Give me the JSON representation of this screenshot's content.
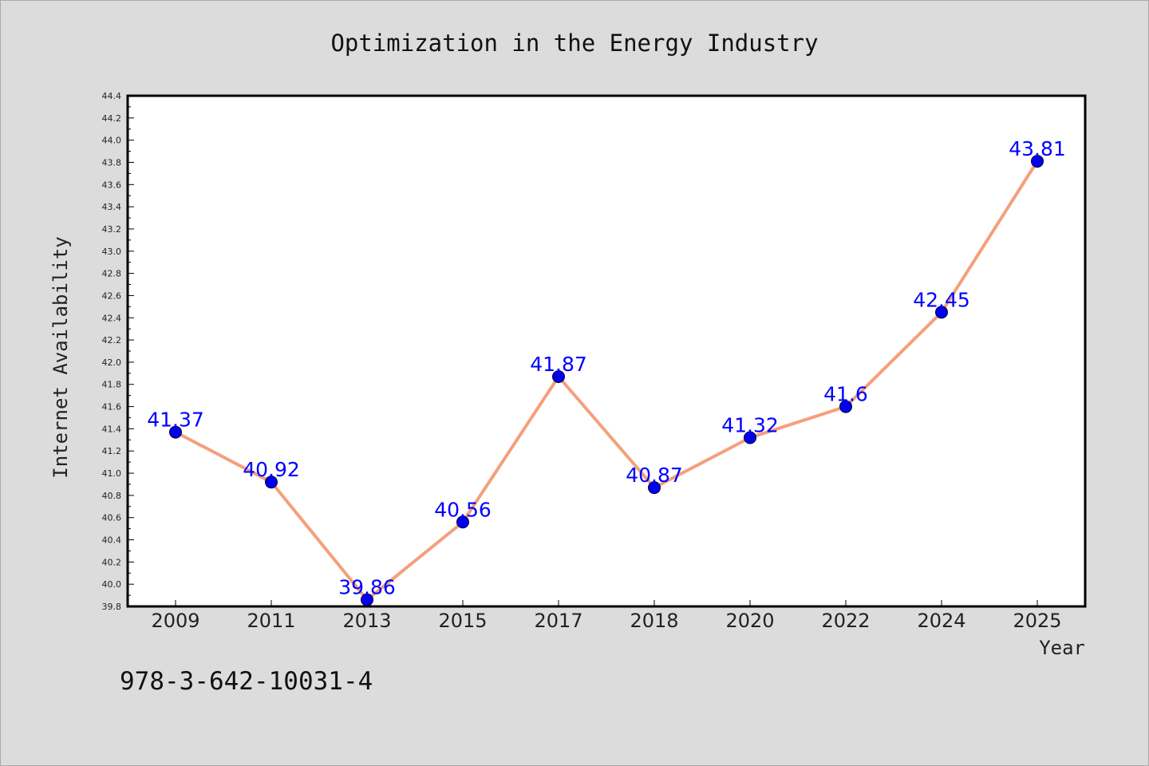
{
  "chart_data": {
    "type": "line",
    "title": "Optimization in the Energy Industry",
    "xlabel": "Year",
    "ylabel": "Internet Availability",
    "categories": [
      "2009",
      "2011",
      "2013",
      "2015",
      "2017",
      "2018",
      "2020",
      "2022",
      "2024",
      "2025"
    ],
    "series": [
      {
        "values": [
          41.37,
          40.92,
          39.86,
          40.56,
          41.87,
          40.87,
          41.32,
          41.6,
          42.45,
          43.81
        ],
        "labels": [
          "41.37",
          "40.92",
          "39.86",
          "40.56",
          "41.87",
          "40.87",
          "41.32",
          "41.6",
          "42.45",
          "43.81"
        ],
        "line_color": "#f4a07c",
        "marker_color": "#0000ee"
      }
    ],
    "ylim": [
      39.8,
      44.4
    ],
    "yticks": [
      "39.8",
      "40.0",
      "40.2",
      "40.4",
      "40.6",
      "40.8",
      "41.0",
      "41.2",
      "41.4",
      "41.6",
      "41.8",
      "42.0",
      "42.2",
      "42.4",
      "42.6",
      "42.8",
      "43.0",
      "43.2",
      "43.4",
      "43.6",
      "43.8",
      "44.0",
      "44.2",
      "44.4"
    ],
    "grid": false,
    "legend": "none"
  },
  "footer": {
    "isbn": "978-3-642-10031-4"
  }
}
